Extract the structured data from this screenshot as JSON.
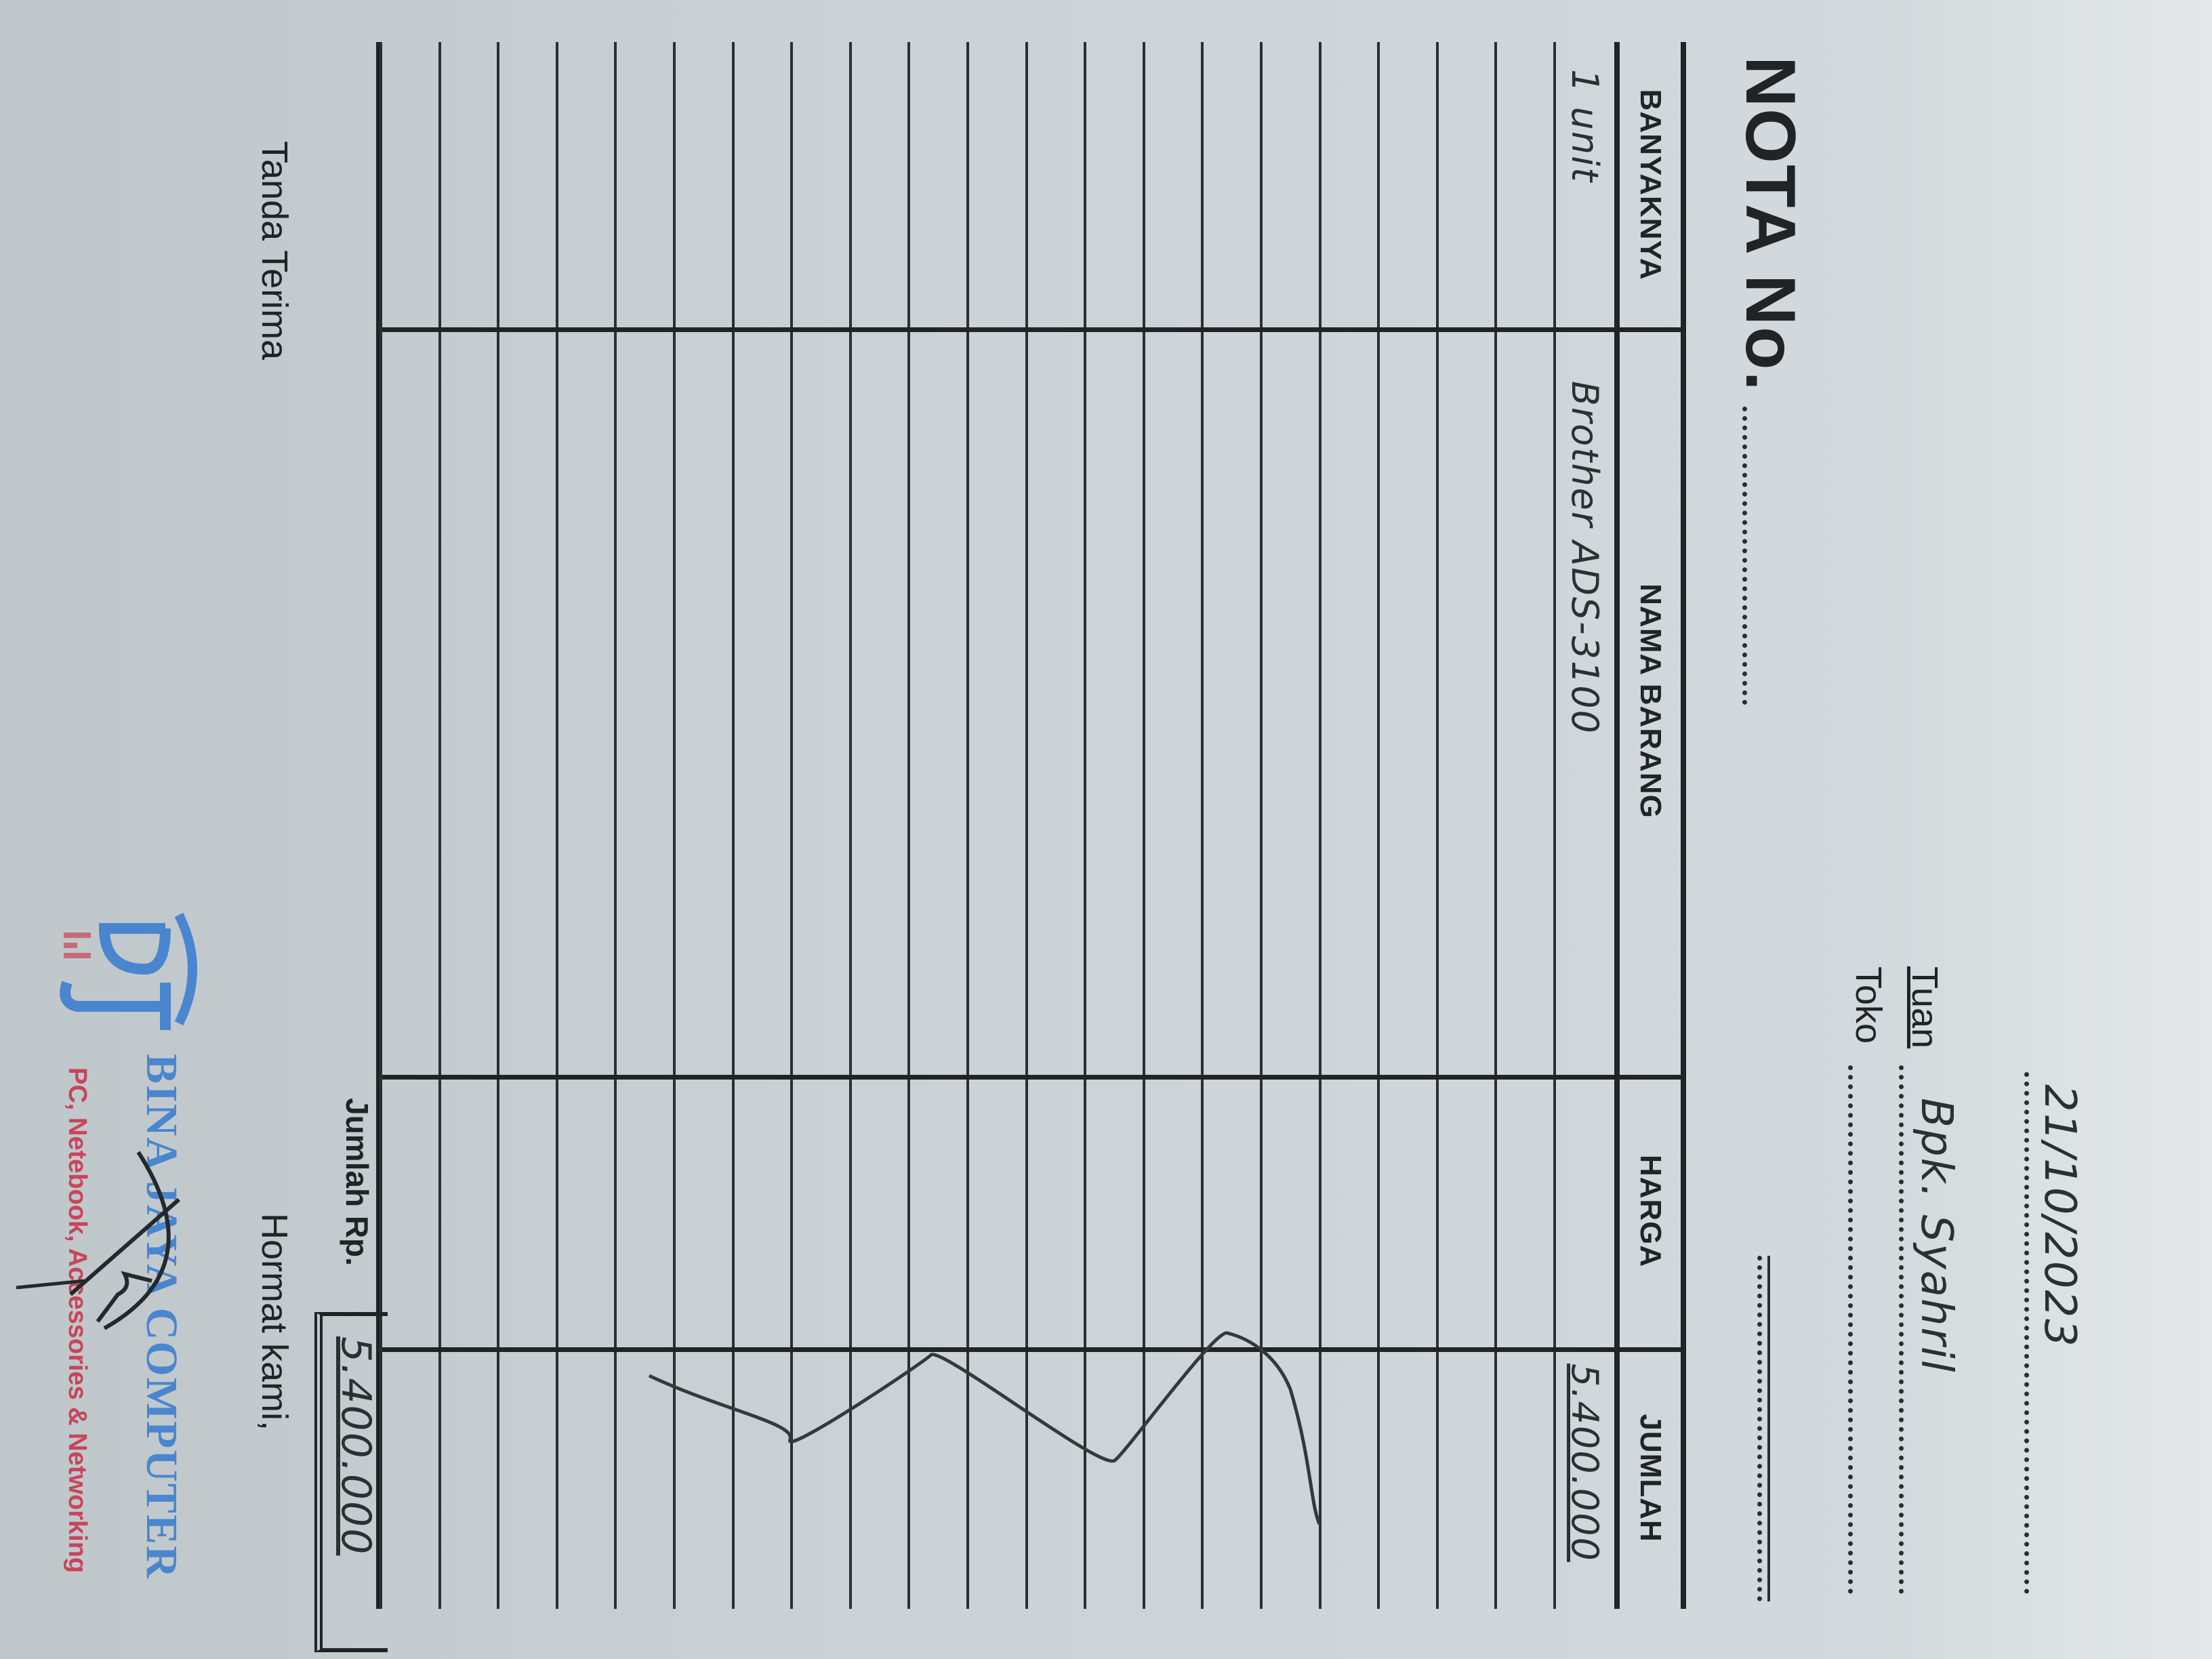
{
  "header": {
    "title": "NOTA No.",
    "date": "21/10/2023",
    "tuan_label": "Tuan",
    "tuan_value": "Bpk. Syahril",
    "toko_label": "Toko"
  },
  "table": {
    "columns": [
      "BANYAKNYA",
      "NAMA BARANG",
      "HARGA",
      "JUMLAH"
    ],
    "items": [
      {
        "qty": "1 unit",
        "name": "Brother ADS-3100",
        "price": "",
        "amount": "5.400.000"
      }
    ]
  },
  "footer": {
    "total_label": "Jumlah Rp.",
    "total_value": "5.400.000",
    "receiver_label": "Tanda Terima",
    "sender_label": "Hormat kami,"
  },
  "stamp": {
    "logo_letters": "DJ",
    "company": "BINA JAYA COMPUTER",
    "tagline": "PC, Netebook, Accessories & Networking",
    "colors": {
      "blue": "#4a86cf",
      "red": "#c8455a"
    }
  }
}
